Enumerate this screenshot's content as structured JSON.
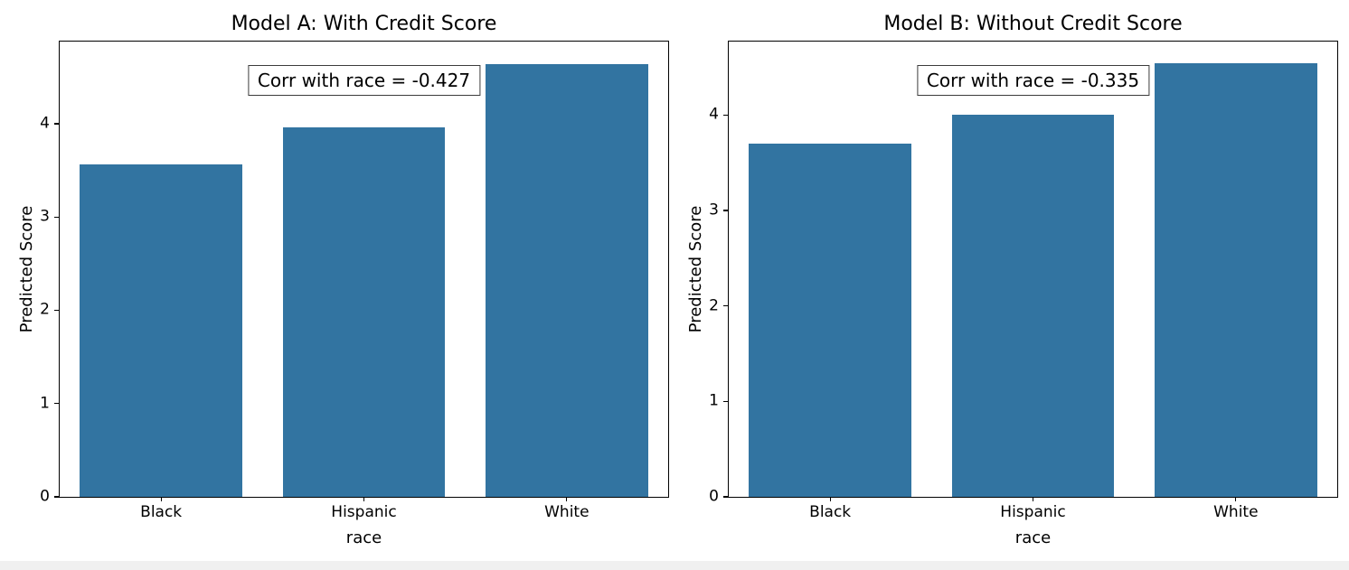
{
  "figure": {
    "background": "#ffffff",
    "bottom_strip_color": "#f0f0f0",
    "spine_color": "#000000",
    "text_color": "#000000"
  },
  "chart_data": [
    {
      "type": "bar",
      "title": "Model A: With Credit Score",
      "annotation": "Corr with race = -0.427",
      "categories": [
        "Black",
        "Hispanic",
        "White"
      ],
      "values": [
        3.56,
        3.96,
        4.64
      ],
      "xlabel": "race",
      "ylabel": "Predicted Score",
      "ylim": [
        0,
        4.88
      ],
      "yticks": [
        0,
        1,
        2,
        3,
        4
      ],
      "bar_color": "#3274a1",
      "grid": false,
      "legend": "none"
    },
    {
      "type": "bar",
      "title": "Model B: Without Credit Score",
      "annotation": "Corr with race = -0.335",
      "categories": [
        "Black",
        "Hispanic",
        "White"
      ],
      "values": [
        3.7,
        4.0,
        4.54
      ],
      "xlabel": "race",
      "ylabel": "Predicted Score",
      "ylim": [
        0,
        4.77
      ],
      "yticks": [
        0,
        1,
        2,
        3,
        4
      ],
      "bar_color": "#3274a1",
      "grid": false,
      "legend": "none"
    }
  ]
}
